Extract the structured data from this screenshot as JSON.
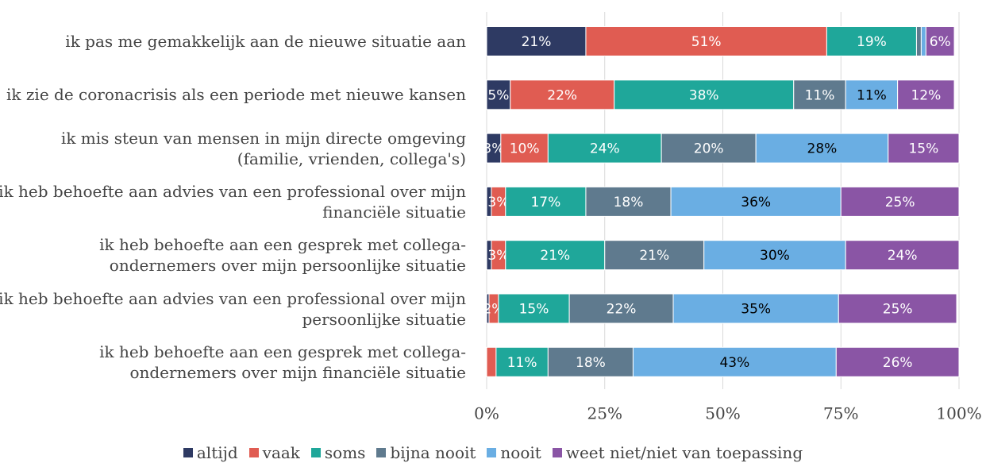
{
  "chart_data": {
    "type": "stacked-bar-horizontal",
    "categories": [
      "ik pas me gemakkelijk aan de nieuwe situatie aan",
      "ik zie de coronacrisis als een periode met nieuwe kansen",
      "ik mis steun van mensen in mijn directe omgeving (familie, vrienden, collega's)",
      "ik heb behoefte aan advies van een professional over mijn financiële situatie",
      "ik heb behoefte aan een gesprek met collega-ondernemers over mijn persoonlijke situatie",
      "ik heb behoefte aan advies van een professional over mijn persoonlijke situatie",
      "ik heb behoefte aan een gesprek met collega-ondernemers over mijn financiële situatie"
    ],
    "series": [
      {
        "name": "altijd",
        "color": "#2e3a63",
        "values": [
          21,
          5,
          3,
          1,
          1,
          0.5,
          0
        ],
        "value_labels": [
          "21%",
          "5%",
          "3%",
          null,
          null,
          null,
          null
        ]
      },
      {
        "name": "vaak",
        "color": "#e05c52",
        "values": [
          51,
          22,
          10,
          3,
          3,
          2,
          2
        ],
        "value_labels": [
          "51%",
          "22%",
          "10%",
          "3%",
          "3%",
          "2%",
          null
        ]
      },
      {
        "name": "soms",
        "color": "#1fa79a",
        "values": [
          19,
          38,
          24,
          17,
          21,
          15,
          11
        ],
        "value_labels": [
          "19%",
          "38%",
          "24%",
          "17%",
          "21%",
          "15%",
          "11%"
        ]
      },
      {
        "name": "bijna nooit",
        "color": "#5f7a8e",
        "values": [
          1,
          11,
          20,
          18,
          21,
          22,
          18
        ],
        "value_labels": [
          null,
          "11%",
          "20%",
          "18%",
          "21%",
          "22%",
          "18%"
        ]
      },
      {
        "name": "nooit",
        "color": "#6aaee3",
        "values": [
          1,
          11,
          28,
          36,
          30,
          35,
          43
        ],
        "value_labels": [
          null,
          "11%",
          "28%",
          "36%",
          "30%",
          "35%",
          "43%"
        ]
      },
      {
        "name": "weet niet/niet van toepassing",
        "color": "#8a55a5",
        "values": [
          6,
          12,
          15,
          25,
          24,
          25,
          26
        ],
        "value_labels": [
          "6%",
          "12%",
          "15%",
          "25%",
          "24%",
          "25%",
          "26%"
        ]
      }
    ],
    "xlim": [
      0,
      100
    ],
    "xticks": [
      {
        "value": 0,
        "label": "0%"
      },
      {
        "value": 25,
        "label": "25%"
      },
      {
        "value": 50,
        "label": "50%"
      },
      {
        "value": 75,
        "label": "75%"
      },
      {
        "value": 100,
        "label": "100%"
      }
    ],
    "grid": true
  }
}
